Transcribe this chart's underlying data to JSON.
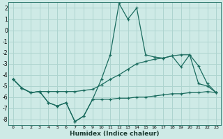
{
  "xlabel": "Humidex (Indice chaleur)",
  "bg_color": "#ceeae6",
  "grid_color": "#aed4cf",
  "line_color": "#1a6b5e",
  "xlim": [
    -0.5,
    23.5
  ],
  "ylim": [
    -8.5,
    2.5
  ],
  "yticks": [
    2,
    1,
    0,
    -1,
    -2,
    -3,
    -4,
    -5,
    -6,
    -7,
    -8
  ],
  "xticks": [
    0,
    1,
    2,
    3,
    4,
    5,
    6,
    7,
    8,
    9,
    10,
    11,
    12,
    13,
    14,
    15,
    16,
    17,
    18,
    19,
    20,
    21,
    22,
    23
  ],
  "line1_x": [
    0,
    1,
    2,
    3,
    4,
    5,
    6,
    7,
    8,
    9,
    10,
    11,
    12,
    13,
    14,
    15,
    16,
    17,
    18,
    19,
    20,
    21,
    22,
    23
  ],
  "line1_y": [
    -4.4,
    -5.2,
    -5.6,
    -5.5,
    -6.5,
    -6.8,
    -6.5,
    -8.2,
    -7.7,
    -6.2,
    -6.2,
    -6.2,
    -6.1,
    -6.1,
    -6.0,
    -6.0,
    -5.9,
    -5.8,
    -5.7,
    -5.7,
    -5.6,
    -5.6,
    -5.5,
    -5.6
  ],
  "line2_x": [
    0,
    1,
    2,
    3,
    4,
    5,
    6,
    7,
    8,
    9,
    10,
    11,
    12,
    13,
    14,
    15,
    16,
    17,
    18,
    19,
    20,
    21,
    22,
    23
  ],
  "line2_y": [
    -4.4,
    -5.2,
    -5.6,
    -5.5,
    -6.5,
    -6.8,
    -6.5,
    -8.2,
    -7.7,
    -6.2,
    -4.4,
    -2.2,
    2.4,
    1.0,
    2.0,
    -2.2,
    -2.4,
    -2.5,
    -2.3,
    -3.3,
    -2.2,
    -4.8,
    -5.0,
    -5.6
  ],
  "line3_x": [
    0,
    1,
    2,
    3,
    4,
    5,
    6,
    7,
    8,
    9,
    10,
    11,
    12,
    13,
    14,
    15,
    16,
    17,
    18,
    19,
    20,
    21,
    22,
    23
  ],
  "line3_y": [
    -4.4,
    -5.2,
    -5.6,
    -5.5,
    -5.5,
    -5.5,
    -5.5,
    -5.5,
    -5.4,
    -5.3,
    -4.9,
    -4.4,
    -4.0,
    -3.5,
    -3.0,
    -2.8,
    -2.6,
    -2.5,
    -2.3,
    -2.2,
    -2.2,
    -3.2,
    -4.8,
    -5.6
  ]
}
